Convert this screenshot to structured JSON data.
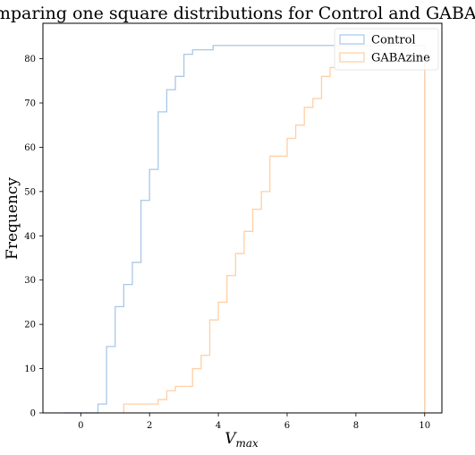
{
  "chart_data": {
    "type": "histogram-step-cumulative",
    "title": "Comparing one square distributions for Control and GABAzine",
    "xlabel": "V",
    "xlabel_sub": "max",
    "ylabel": "Frequency",
    "xlim": [
      -1.1,
      10.5
    ],
    "ylim": [
      0,
      88
    ],
    "xticks": [
      0,
      2,
      4,
      6,
      8,
      10
    ],
    "yticks": [
      0,
      10,
      20,
      30,
      40,
      50,
      60,
      70,
      80
    ],
    "legend_position": "top-right",
    "grid": false,
    "series": [
      {
        "name": "Control",
        "color": "#a8c8e8",
        "edges": [
          -0.5,
          0.5,
          0.75,
          1.0,
          1.25,
          1.5,
          1.75,
          2.0,
          2.25,
          2.5,
          2.75,
          3.0,
          3.25,
          3.5,
          3.85,
          10.0
        ],
        "counts": [
          0,
          2,
          15,
          24,
          29,
          34,
          48,
          55,
          68,
          73,
          76,
          81,
          82,
          82,
          83
        ]
      },
      {
        "name": "GABAzine",
        "color": "#ffcfa6",
        "edges": [
          1.25,
          2.25,
          2.5,
          2.75,
          3.0,
          3.25,
          3.5,
          3.75,
          4.0,
          4.25,
          4.5,
          4.75,
          5.0,
          5.25,
          5.5,
          6.0,
          6.25,
          6.5,
          6.75,
          7.0,
          7.25,
          7.5,
          8.0,
          10.0
        ],
        "counts": [
          2,
          3,
          5,
          6,
          6,
          10,
          13,
          21,
          25,
          31,
          36,
          41,
          46,
          50,
          58,
          62,
          65,
          69,
          71,
          76,
          78,
          83,
          83
        ]
      }
    ]
  }
}
